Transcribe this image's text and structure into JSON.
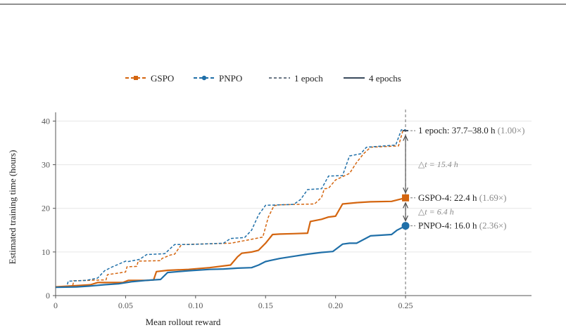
{
  "chart_data": {
    "type": "line",
    "xlabel": "Mean rollout reward",
    "ylabel": "Estimated training time (hours)",
    "xlim": [
      0,
      0.34
    ],
    "ylim": [
      0,
      42
    ],
    "x_ticks": [
      0,
      0.05,
      0.1,
      0.15,
      0.2,
      0.25
    ],
    "x_tick_labels": [
      "0",
      "0.05",
      "0.10",
      "0.15",
      "0.20",
      "0.25"
    ],
    "y_ticks": [
      0,
      10,
      20,
      30,
      40
    ],
    "y_tick_labels": [
      "0",
      "10",
      "20",
      "30",
      "40"
    ],
    "grid": "horizontal",
    "legend_placement": "top-center",
    "legend": [
      {
        "label": "GSPO",
        "kind": "marker-square",
        "color": "#d4650f"
      },
      {
        "label": "PNPO",
        "kind": "marker-circle",
        "color": "#1f6fa8"
      },
      {
        "label": "1 epoch",
        "kind": "dashed",
        "color": "#3a4a5c"
      },
      {
        "label": "4 epochs",
        "kind": "solid",
        "color": "#3a4a5c"
      }
    ],
    "vline_x": 0.25,
    "series": [
      {
        "name": "GSPO",
        "epochs": "1 epoch",
        "color": "#d4650f",
        "style": "dashed",
        "x": [
          0,
          0.012,
          0.013,
          0.036,
          0.037,
          0.05,
          0.051,
          0.058,
          0.059,
          0.075,
          0.076,
          0.082,
          0.085,
          0.09,
          0.125,
          0.13,
          0.148,
          0.152,
          0.156,
          0.16,
          0.185,
          0.19,
          0.192,
          0.195,
          0.2,
          0.21,
          0.215,
          0.22,
          0.225,
          0.245,
          0.248,
          0.25
        ],
        "values": [
          2.0,
          2.0,
          3.4,
          3.6,
          4.8,
          5.4,
          6.6,
          6.7,
          7.9,
          8.0,
          8.5,
          9.3,
          9.5,
          11.7,
          12.0,
          12.3,
          13.4,
          18.0,
          20.6,
          20.8,
          21.0,
          22.5,
          24.5,
          24.6,
          26.5,
          28.0,
          30.5,
          32.5,
          34.0,
          34.3,
          37.7,
          37.7
        ]
      },
      {
        "name": "PNPO",
        "epochs": "1 epoch",
        "color": "#1f6fa8",
        "style": "dashed",
        "x": [
          0,
          0.008,
          0.009,
          0.022,
          0.03,
          0.035,
          0.04,
          0.05,
          0.052,
          0.06,
          0.065,
          0.078,
          0.08,
          0.085,
          0.095,
          0.12,
          0.125,
          0.135,
          0.14,
          0.145,
          0.15,
          0.17,
          0.175,
          0.18,
          0.19,
          0.195,
          0.205,
          0.21,
          0.218,
          0.222,
          0.243,
          0.247,
          0.25
        ],
        "values": [
          1.9,
          2.0,
          3.3,
          3.5,
          4.0,
          5.7,
          6.5,
          7.9,
          7.8,
          8.3,
          9.4,
          9.6,
          10.2,
          11.7,
          11.7,
          12.0,
          13.1,
          13.3,
          15.0,
          18.5,
          20.7,
          20.9,
          22.0,
          24.3,
          24.5,
          27.4,
          27.5,
          32.0,
          32.5,
          34.0,
          34.5,
          38.0,
          38.0
        ]
      },
      {
        "name": "GSPO",
        "epochs": "4 epochs",
        "color": "#d4650f",
        "style": "solid",
        "x": [
          0,
          0.025,
          0.03,
          0.048,
          0.052,
          0.06,
          0.065,
          0.07,
          0.072,
          0.08,
          0.095,
          0.11,
          0.125,
          0.13,
          0.133,
          0.14,
          0.145,
          0.15,
          0.155,
          0.16,
          0.17,
          0.18,
          0.182,
          0.19,
          0.195,
          0.2,
          0.205,
          0.215,
          0.225,
          0.24,
          0.245,
          0.25
        ],
        "values": [
          2.0,
          2.5,
          3.0,
          3.0,
          3.5,
          3.5,
          3.5,
          3.6,
          5.5,
          5.8,
          6.0,
          6.4,
          7.0,
          8.9,
          9.7,
          10.0,
          10.4,
          12.0,
          14.0,
          14.1,
          14.2,
          14.3,
          17.0,
          17.5,
          18.0,
          18.2,
          21.0,
          21.3,
          21.5,
          21.6,
          22.0,
          22.4
        ]
      },
      {
        "name": "PNPO",
        "epochs": "4 epochs",
        "color": "#1f6fa8",
        "style": "solid",
        "x": [
          0,
          0.015,
          0.025,
          0.035,
          0.045,
          0.055,
          0.065,
          0.075,
          0.08,
          0.095,
          0.11,
          0.12,
          0.13,
          0.14,
          0.145,
          0.15,
          0.16,
          0.17,
          0.18,
          0.19,
          0.198,
          0.205,
          0.21,
          0.215,
          0.225,
          0.24,
          0.244,
          0.25
        ],
        "values": [
          1.9,
          2.0,
          2.2,
          2.5,
          2.7,
          3.2,
          3.5,
          3.7,
          5.3,
          5.7,
          6.0,
          6.1,
          6.3,
          6.4,
          7.0,
          7.8,
          8.5,
          9.0,
          9.5,
          9.9,
          10.1,
          11.8,
          12.0,
          12.0,
          13.7,
          14.0,
          15.0,
          16.0
        ]
      }
    ],
    "annotations": [
      {
        "id": "one-epoch",
        "text": "1 epoch: 37.7–38.0 h",
        "sub": "(1.00×)",
        "y": 37.8,
        "marker": "dash",
        "color": "#3a4a5c"
      },
      {
        "id": "gspo-4",
        "text": "GSPO-4: 22.4 h",
        "sub": "(1.69×)",
        "y": 22.4,
        "marker": "square",
        "color": "#d4650f"
      },
      {
        "id": "pnpo-4",
        "text": "PNPO-4: 16.0 h",
        "sub": "(2.36×)",
        "y": 16.0,
        "marker": "circle",
        "color": "#1f6fa8"
      }
    ],
    "deltas": [
      {
        "text": "△t = 15.4 h",
        "from": 37.8,
        "to": 22.4
      },
      {
        "text": "△t = 6.4 h",
        "from": 22.4,
        "to": 16.0
      }
    ]
  }
}
